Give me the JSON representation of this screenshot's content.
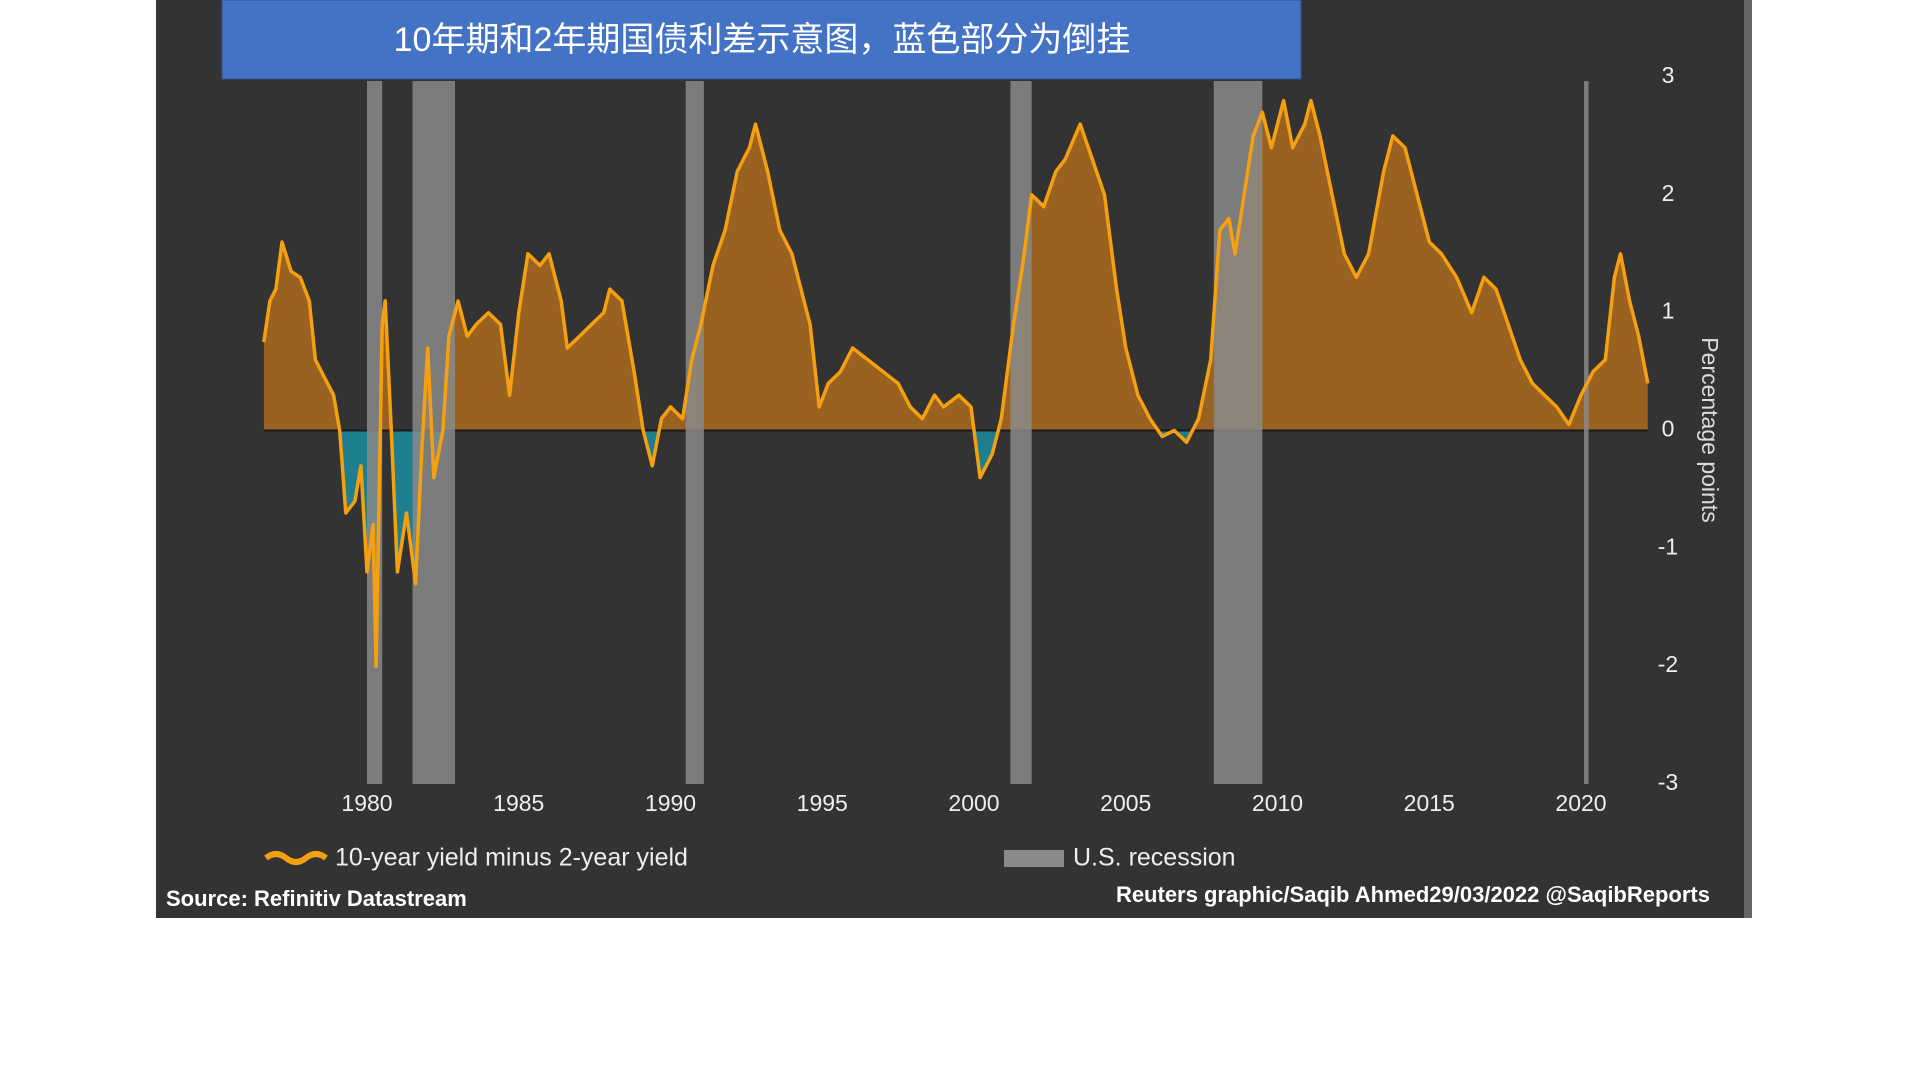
{
  "chart_data": {
    "type": "area",
    "title": "10年期和2年期国债利差示意图，蓝色部分为倒挂",
    "x": [
      1976.6,
      1976.8,
      1977.0,
      1977.2,
      1977.5,
      1977.8,
      1978.1,
      1978.3,
      1978.6,
      1978.9,
      1979.1,
      1979.3,
      1979.6,
      1979.8,
      1980.0,
      1980.2,
      1980.3,
      1980.5,
      1980.6,
      1980.8,
      1981.0,
      1981.3,
      1981.6,
      1981.8,
      1982.0,
      1982.2,
      1982.5,
      1982.7,
      1983.0,
      1983.3,
      1983.6,
      1984.0,
      1984.4,
      1984.7,
      1985.0,
      1985.3,
      1985.7,
      1986.0,
      1986.4,
      1986.6,
      1987.0,
      1987.4,
      1987.8,
      1988.0,
      1988.4,
      1988.8,
      1989.1,
      1989.4,
      1989.7,
      1990.0,
      1990.4,
      1990.7,
      1991.0,
      1991.4,
      1991.8,
      1992.2,
      1992.6,
      1992.8,
      1993.2,
      1993.6,
      1994.0,
      1994.4,
      1994.6,
      1994.9,
      1995.2,
      1995.6,
      1996.0,
      1996.5,
      1997.0,
      1997.5,
      1997.9,
      1998.3,
      1998.7,
      1999.0,
      1999.5,
      1999.9,
      2000.2,
      2000.6,
      2000.9,
      2001.3,
      2001.6,
      2001.9,
      2002.3,
      2002.7,
      2003.0,
      2003.5,
      2003.9,
      2004.3,
      2004.7,
      2005.0,
      2005.4,
      2005.8,
      2006.2,
      2006.6,
      2007.0,
      2007.4,
      2007.8,
      2008.1,
      2008.4,
      2008.6,
      2008.9,
      2009.2,
      2009.5,
      2009.8,
      2010.2,
      2010.5,
      2010.9,
      2011.1,
      2011.4,
      2011.8,
      2012.2,
      2012.6,
      2013.0,
      2013.5,
      2013.8,
      2014.2,
      2014.6,
      2015.0,
      2015.4,
      2015.9,
      2016.4,
      2016.8,
      2017.2,
      2017.6,
      2018.0,
      2018.4,
      2018.8,
      2019.2,
      2019.6,
      2020.0,
      2020.4,
      2020.8,
      2021.1,
      2021.3,
      2021.6,
      2021.9,
      2022.2
    ],
    "series": [
      {
        "name": "10-year yield minus 2-year yield",
        "color": "#f5a011",
        "values": [
          0.75,
          1.1,
          1.2,
          1.6,
          1.35,
          1.3,
          1.1,
          0.6,
          0.45,
          0.3,
          0.0,
          -0.7,
          -0.6,
          -0.3,
          -1.2,
          -0.8,
          -2.0,
          0.9,
          1.1,
          0.0,
          -1.2,
          -0.7,
          -1.3,
          -0.2,
          0.7,
          -0.4,
          0.0,
          0.8,
          1.1,
          0.8,
          0.9,
          1.0,
          0.9,
          0.3,
          1.0,
          1.5,
          1.4,
          1.5,
          1.1,
          0.7,
          0.8,
          0.9,
          1.0,
          1.2,
          1.1,
          0.5,
          0.0,
          -0.3,
          0.1,
          0.2,
          0.1,
          0.6,
          0.9,
          1.4,
          1.7,
          2.2,
          2.4,
          2.6,
          2.2,
          1.7,
          1.5,
          1.1,
          0.9,
          0.2,
          0.4,
          0.5,
          0.7,
          0.6,
          0.5,
          0.4,
          0.2,
          0.1,
          0.3,
          0.2,
          0.3,
          0.2,
          -0.4,
          -0.2,
          0.1,
          0.9,
          1.4,
          2.0,
          1.9,
          2.2,
          2.3,
          2.6,
          2.3,
          2.0,
          1.2,
          0.7,
          0.3,
          0.1,
          -0.05,
          0.0,
          -0.1,
          0.1,
          0.6,
          1.7,
          1.8,
          1.5,
          2.0,
          2.5,
          2.7,
          2.4,
          2.8,
          2.4,
          2.6,
          2.8,
          2.5,
          2.0,
          1.5,
          1.3,
          1.5,
          2.2,
          2.5,
          2.4,
          2.0,
          1.6,
          1.5,
          1.3,
          1.0,
          1.3,
          1.2,
          0.9,
          0.6,
          0.4,
          0.3,
          0.2,
          0.05,
          0.3,
          0.5,
          0.6,
          1.3,
          1.5,
          1.1,
          0.8,
          0.4
        ]
      }
    ],
    "positive_color": "#9a6220",
    "negative_color": "#1d7f8e",
    "recession_name": "U.S. recession",
    "recession_color": "#8a8a8a",
    "recessions": [
      [
        1980.0,
        1980.5
      ],
      [
        1981.5,
        1982.9
      ],
      [
        1990.5,
        1991.1
      ],
      [
        2001.2,
        2001.9
      ],
      [
        2007.9,
        2009.5
      ],
      [
        2020.1,
        2020.25
      ]
    ],
    "xlim": [
      1976.6,
      2022.2
    ],
    "xticks": [
      1980,
      1985,
      1990,
      1995,
      2000,
      2005,
      2010,
      2015,
      2020
    ],
    "ylim": [
      -3,
      3
    ],
    "yticks": [
      -3,
      -2,
      -1,
      0,
      1,
      2,
      3
    ],
    "ylabel": "Percentage points",
    "source": "Source: Refinitiv Datastream",
    "credit": "Reuters graphic/Saqib Ahmed29/03/2022 @SaqibReports"
  }
}
